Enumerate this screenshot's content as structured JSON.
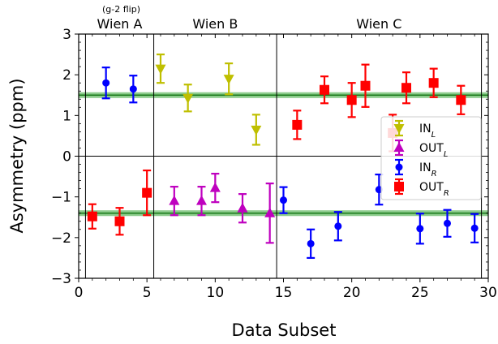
{
  "chart_data": {
    "type": "scatter",
    "xlabel": "Data Subset",
    "ylabel": "Asymmetry (ppm)",
    "xlim": [
      0,
      30
    ],
    "ylim": [
      -3,
      3
    ],
    "xticks": [
      "0",
      "5",
      "10",
      "15",
      "20",
      "25",
      "30"
    ],
    "xtick_values": [
      0,
      5,
      10,
      15,
      20,
      25,
      30
    ],
    "yticks": [
      "−3",
      "−2",
      "−1",
      "0",
      "1",
      "2",
      "3"
    ],
    "ytick_values": [
      -3,
      -2,
      -1,
      0,
      1,
      2,
      3
    ],
    "grid": false,
    "legend_position": "right",
    "zero_line": true,
    "region_boundaries": [
      0.5,
      5.5,
      14.5,
      29.5
    ],
    "regions": [
      {
        "label": "Wien A",
        "note": "(g-2 flip)",
        "x_center": 3.0
      },
      {
        "label": "Wien B",
        "note": "",
        "x_center": 10.0
      },
      {
        "label": "Wien C",
        "note": "",
        "x_center": 22.0
      }
    ],
    "fit_bands": [
      {
        "value": 1.5,
        "half_width": 0.07,
        "color": "#2ca02c"
      },
      {
        "value": -1.4,
        "half_width": 0.07,
        "color": "#2ca02c"
      }
    ],
    "series": [
      {
        "name": "IN",
        "name_sub": "L",
        "marker": "triangle-down",
        "color": "#bfbf00",
        "points": [
          {
            "x": 6,
            "y": 2.15,
            "err": 0.35
          },
          {
            "x": 8,
            "y": 1.43,
            "err": 0.33
          },
          {
            "x": 11,
            "y": 1.9,
            "err": 0.38
          },
          {
            "x": 13,
            "y": 0.65,
            "err": 0.37
          }
        ]
      },
      {
        "name": "OUT",
        "name_sub": "L",
        "marker": "triangle-up",
        "color": "#bf00bf",
        "points": [
          {
            "x": 7,
            "y": -1.1,
            "err": 0.35
          },
          {
            "x": 9,
            "y": -1.1,
            "err": 0.35
          },
          {
            "x": 10,
            "y": -0.78,
            "err": 0.35
          },
          {
            "x": 12,
            "y": -1.28,
            "err": 0.35
          },
          {
            "x": 14,
            "y": -1.4,
            "err": 0.73
          }
        ]
      },
      {
        "name": "IN",
        "name_sub": "R",
        "marker": "circle",
        "color": "#0000ff",
        "points": [
          {
            "x": 2,
            "y": 1.8,
            "err": 0.38
          },
          {
            "x": 4,
            "y": 1.65,
            "err": 0.33
          },
          {
            "x": 15,
            "y": -1.08,
            "err": 0.32
          },
          {
            "x": 17,
            "y": -2.15,
            "err": 0.35
          },
          {
            "x": 19,
            "y": -1.72,
            "err": 0.35
          },
          {
            "x": 22,
            "y": -0.82,
            "err": 0.37
          },
          {
            "x": 25,
            "y": -1.78,
            "err": 0.37
          },
          {
            "x": 27,
            "y": -1.65,
            "err": 0.33
          },
          {
            "x": 29,
            "y": -1.77,
            "err": 0.35
          }
        ]
      },
      {
        "name": "OUT",
        "name_sub": "R",
        "marker": "square",
        "color": "#ff0000",
        "points": [
          {
            "x": 1,
            "y": -1.48,
            "err": 0.3
          },
          {
            "x": 3,
            "y": -1.6,
            "err": 0.33
          },
          {
            "x": 5,
            "y": -0.9,
            "err": 0.55
          },
          {
            "x": 16,
            "y": 0.77,
            "err": 0.35
          },
          {
            "x": 18,
            "y": 1.63,
            "err": 0.33
          },
          {
            "x": 20,
            "y": 1.38,
            "err": 0.42
          },
          {
            "x": 21,
            "y": 1.73,
            "err": 0.52
          },
          {
            "x": 23,
            "y": 0.57,
            "err": 0.45
          },
          {
            "x": 24,
            "y": 1.68,
            "err": 0.38
          },
          {
            "x": 26,
            "y": 1.8,
            "err": 0.35
          },
          {
            "x": 28,
            "y": 1.38,
            "err": 0.35
          }
        ]
      }
    ]
  }
}
